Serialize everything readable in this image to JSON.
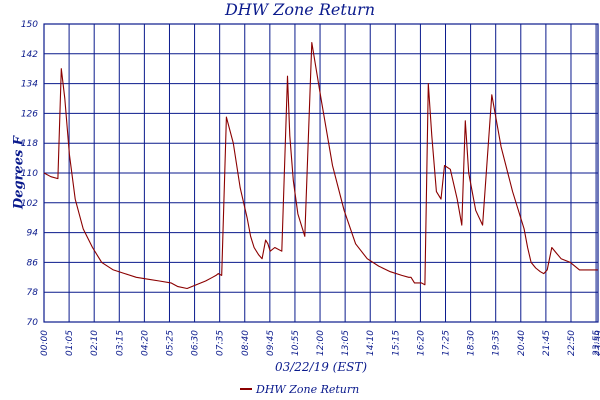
{
  "chart_data": {
    "type": "line",
    "title": "DHW Zone Return",
    "xlabel": "03/22/19 (EST)",
    "ylabel": "Degrees F",
    "ylim": [
      70,
      150
    ],
    "y_ticks": [
      70,
      78,
      86,
      94,
      102,
      110,
      118,
      126,
      134,
      142,
      150
    ],
    "x_tick_labels": [
      "00:00",
      "01:05",
      "02:10",
      "03:15",
      "04:20",
      "05:25",
      "06:30",
      "07:35",
      "08:40",
      "09:45",
      "10:55",
      "12:00",
      "13:05",
      "14:10",
      "15:15",
      "16:20",
      "17:25",
      "18:30",
      "19:35",
      "20:40",
      "21:45",
      "22:50",
      "23:55",
      "23:59"
    ],
    "grid": true,
    "legend_position": "bottom",
    "colors": {
      "series": "#8b0000",
      "grid": "#0a1a8c",
      "text": "#0a1a8c"
    },
    "series": [
      {
        "name": "DHW Zone Return",
        "x_hours": [
          0.0,
          0.3,
          0.6,
          0.75,
          0.9,
          1.1,
          1.35,
          1.7,
          2.1,
          2.5,
          3.0,
          3.5,
          4.0,
          4.5,
          5.0,
          5.5,
          5.8,
          6.2,
          6.6,
          7.0,
          7.3,
          7.45,
          7.55,
          7.7,
          7.9,
          8.2,
          8.5,
          8.8,
          8.95,
          9.1,
          9.3,
          9.45,
          9.6,
          9.7,
          9.8,
          10.0,
          10.3,
          10.55,
          10.65,
          10.8,
          11.0,
          11.3,
          11.6,
          12.0,
          12.5,
          13.0,
          13.5,
          14.0,
          14.5,
          15.0,
          15.5,
          15.8,
          15.9,
          16.05,
          16.2,
          16.35,
          16.5,
          16.65,
          16.8,
          17.0,
          17.2,
          17.35,
          17.6,
          17.9,
          18.1,
          18.25,
          18.4,
          18.7,
          19.0,
          19.4,
          19.8,
          20.3,
          20.8,
          20.95,
          21.1,
          21.3,
          21.5,
          21.65,
          21.8,
          22.0,
          22.2,
          22.4,
          22.8,
          23.2,
          23.55,
          23.99
        ],
        "values": [
          110,
          109,
          108.5,
          138,
          130,
          115,
          103,
          95,
          90,
          86,
          84,
          83,
          82,
          81.5,
          81,
          80.5,
          79.5,
          79,
          80,
          81,
          82,
          82.5,
          83,
          82.5,
          125,
          118,
          106,
          98,
          93,
          90,
          88,
          87,
          92,
          91,
          89,
          90,
          89,
          136,
          120,
          108,
          99,
          93,
          145,
          130,
          112,
          100,
          91,
          87,
          85,
          83.5,
          82.5,
          82,
          82,
          80.5,
          80.5,
          80.5,
          80,
          134,
          120,
          105,
          103,
          112,
          111,
          103,
          96,
          124,
          110,
          100,
          96,
          131,
          117,
          105,
          95,
          90,
          86,
          84.5,
          83.5,
          83,
          84,
          90,
          88.5,
          87,
          86,
          84,
          84,
          84
        ]
      }
    ]
  }
}
